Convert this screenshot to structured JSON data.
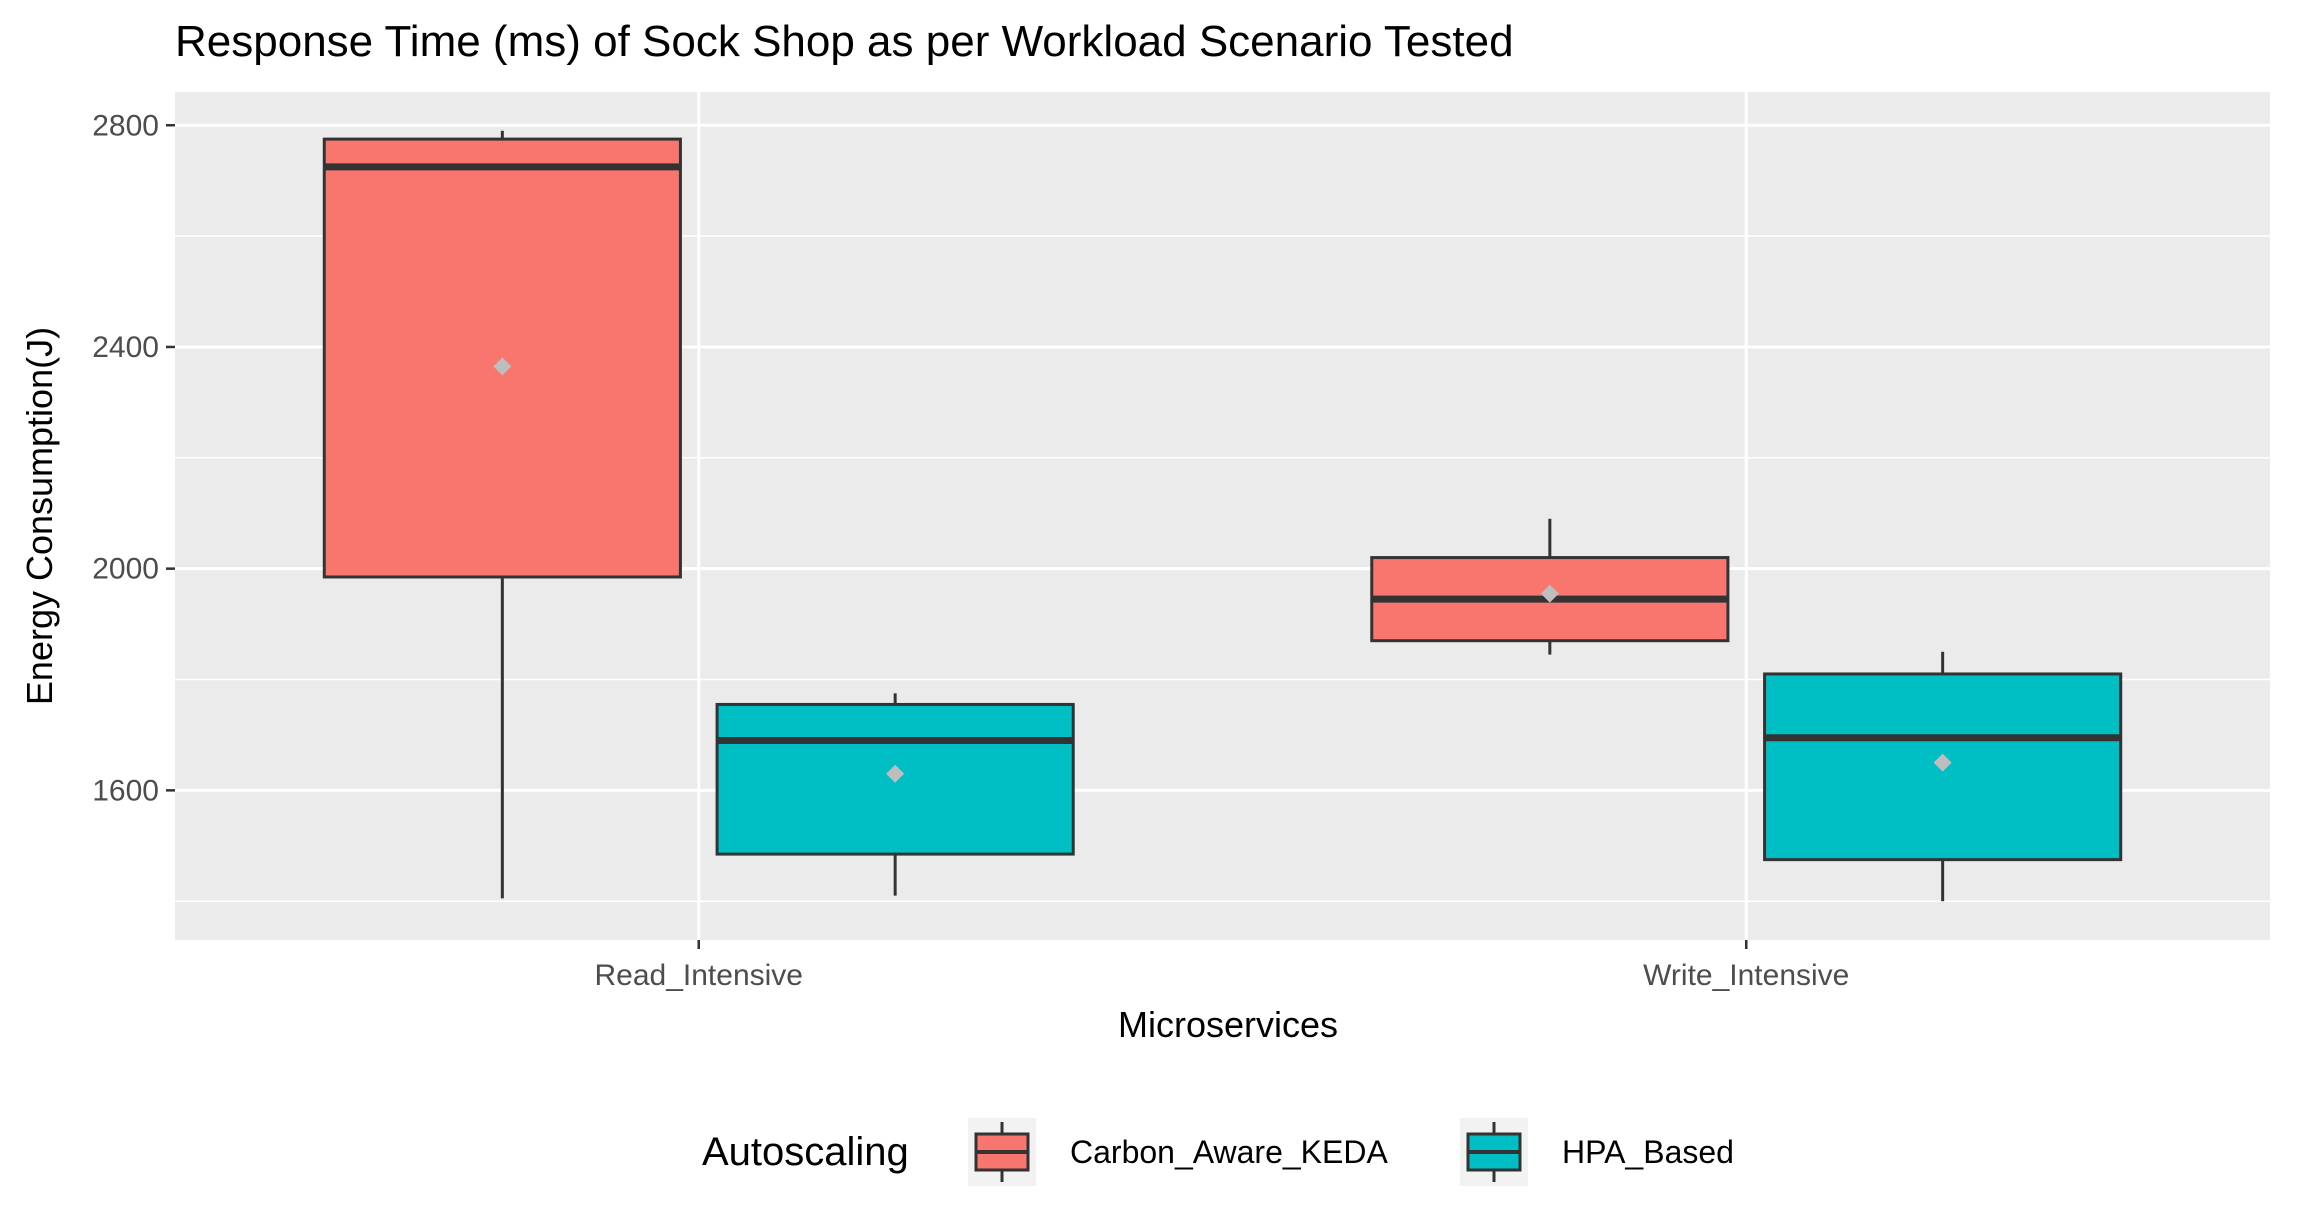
{
  "chart_data": {
    "type": "boxplot",
    "title": "Response Time (ms) of Sock Shop as per Workload Scenario Tested",
    "xlabel": "Microservices",
    "ylabel": "Energy Consumption(J)",
    "ylim": [
      1330,
      2860
    ],
    "yticks": [
      1600,
      2000,
      2400,
      2800
    ],
    "categories": [
      "Read_Intensive",
      "Write_Intensive"
    ],
    "legend": {
      "title": "Autoscaling",
      "position": "bottom"
    },
    "series": [
      {
        "name": "Carbon_Aware_KEDA",
        "color": "#F8766D",
        "boxes": [
          {
            "category": "Read_Intensive",
            "min": 1405,
            "q1": 1985,
            "median": 2725,
            "q3": 2775,
            "max": 2790,
            "mean": 2365
          },
          {
            "category": "Write_Intensive",
            "min": 1845,
            "q1": 1870,
            "median": 1945,
            "q3": 2020,
            "max": 2090,
            "mean": 1955
          }
        ]
      },
      {
        "name": "HPA_Based",
        "color": "#00BFC4",
        "boxes": [
          {
            "category": "Read_Intensive",
            "min": 1410,
            "q1": 1485,
            "median": 1690,
            "q3": 1755,
            "max": 1775,
            "mean": 1630
          },
          {
            "category": "Write_Intensive",
            "min": 1400,
            "q1": 1475,
            "median": 1695,
            "q3": 1810,
            "max": 1850,
            "mean": 1650
          }
        ]
      }
    ],
    "grid": true,
    "panel_background": "#EBEBEB",
    "mean_marker_color": "#BEBEBE"
  }
}
